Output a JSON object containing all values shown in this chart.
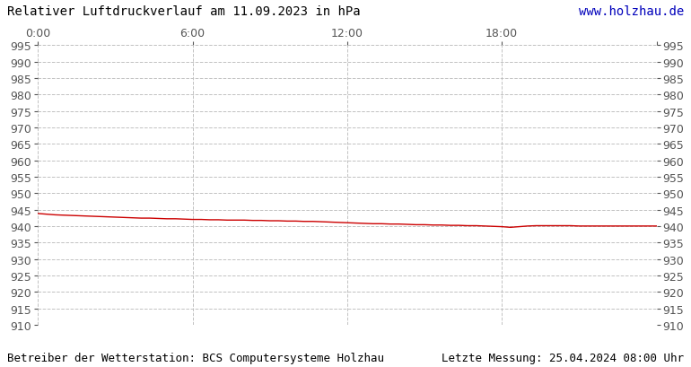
{
  "title_left": "Relativer Luftdruckverlauf am 11.09.2023 in hPa",
  "title_right": "www.holzhau.de",
  "title_right_color": "#0000bb",
  "footer_left": "Betreiber der Wetterstation: BCS Computersysteme Holzhau",
  "footer_right": "Letzte Messung: 25.04.2024 08:00 Uhr",
  "ylim": [
    910,
    995
  ],
  "ytick_step": 5,
  "xlim": [
    0,
    1440
  ],
  "xtick_positions": [
    0,
    360,
    720,
    1080,
    1440
  ],
  "xtick_labels": [
    "0:00",
    "6:00",
    "12:00",
    "18:00",
    ""
  ],
  "line_color": "#cc0000",
  "line_width": 1.0,
  "background_color": "#ffffff",
  "grid_color": "#bbbbbb",
  "grid_style": "--",
  "grid_alpha": 0.9,
  "pressure_data": [
    [
      0,
      943.8
    ],
    [
      20,
      943.6
    ],
    [
      40,
      943.4
    ],
    [
      60,
      943.3
    ],
    [
      80,
      943.2
    ],
    [
      100,
      943.1
    ],
    [
      120,
      943.0
    ],
    [
      140,
      942.9
    ],
    [
      160,
      942.8
    ],
    [
      180,
      942.7
    ],
    [
      200,
      942.6
    ],
    [
      220,
      942.5
    ],
    [
      240,
      942.4
    ],
    [
      260,
      942.4
    ],
    [
      280,
      942.3
    ],
    [
      300,
      942.2
    ],
    [
      320,
      942.2
    ],
    [
      340,
      942.1
    ],
    [
      360,
      942.0
    ],
    [
      380,
      942.0
    ],
    [
      400,
      941.9
    ],
    [
      420,
      941.9
    ],
    [
      440,
      941.8
    ],
    [
      460,
      941.8
    ],
    [
      480,
      941.8
    ],
    [
      500,
      941.7
    ],
    [
      520,
      941.7
    ],
    [
      540,
      941.6
    ],
    [
      560,
      941.6
    ],
    [
      580,
      941.5
    ],
    [
      600,
      941.5
    ],
    [
      620,
      941.4
    ],
    [
      640,
      941.4
    ],
    [
      660,
      941.3
    ],
    [
      680,
      941.2
    ],
    [
      700,
      941.1
    ],
    [
      720,
      941.0
    ],
    [
      740,
      940.9
    ],
    [
      760,
      940.8
    ],
    [
      780,
      940.7
    ],
    [
      800,
      940.7
    ],
    [
      820,
      940.6
    ],
    [
      840,
      940.6
    ],
    [
      860,
      940.5
    ],
    [
      880,
      940.4
    ],
    [
      900,
      940.4
    ],
    [
      920,
      940.3
    ],
    [
      940,
      940.3
    ],
    [
      960,
      940.2
    ],
    [
      980,
      940.2
    ],
    [
      1000,
      940.1
    ],
    [
      1020,
      940.1
    ],
    [
      1040,
      940.0
    ],
    [
      1060,
      939.9
    ],
    [
      1080,
      939.8
    ],
    [
      1090,
      939.7
    ],
    [
      1100,
      939.6
    ],
    [
      1110,
      939.7
    ],
    [
      1120,
      939.8
    ],
    [
      1130,
      939.9
    ],
    [
      1140,
      940.0
    ],
    [
      1160,
      940.1
    ],
    [
      1180,
      940.1
    ],
    [
      1200,
      940.1
    ],
    [
      1220,
      940.1
    ],
    [
      1240,
      940.1
    ],
    [
      1260,
      940.0
    ],
    [
      1280,
      940.0
    ],
    [
      1300,
      940.0
    ],
    [
      1320,
      940.0
    ],
    [
      1340,
      940.0
    ],
    [
      1360,
      940.0
    ],
    [
      1380,
      940.0
    ],
    [
      1400,
      940.0
    ],
    [
      1420,
      940.0
    ],
    [
      1440,
      940.0
    ]
  ],
  "tick_fontsize": 9,
  "title_fontsize": 10,
  "footer_fontsize": 9
}
